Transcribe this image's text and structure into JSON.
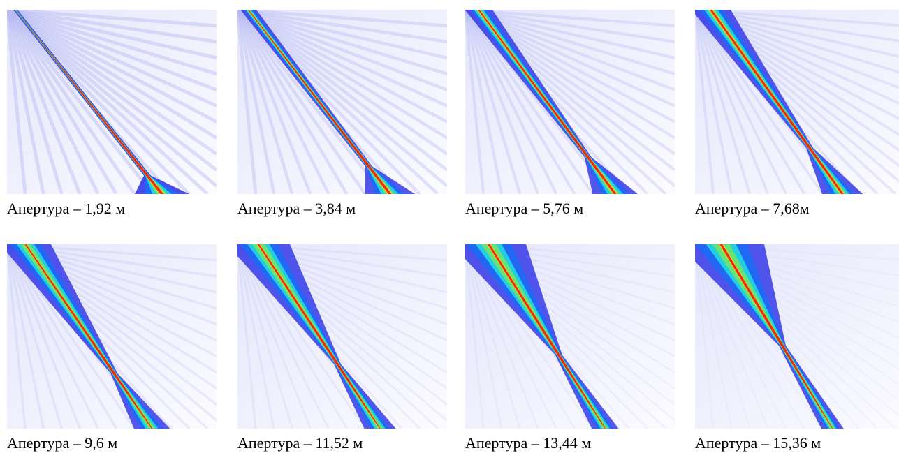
{
  "panels": [
    {
      "caption": "Апертура – 1,92 м"
    },
    {
      "caption": "Апертура – 3,84 м"
    },
    {
      "caption": "Апертура – 5,76 м"
    },
    {
      "caption": "Апертура – 7,68м"
    },
    {
      "caption": "Апертура – 9,6 м"
    },
    {
      "caption": "Апертура – 11,52 м"
    },
    {
      "caption": "Апертура – 13,44 м"
    },
    {
      "caption": "Апертура – 15,36 м"
    }
  ]
}
